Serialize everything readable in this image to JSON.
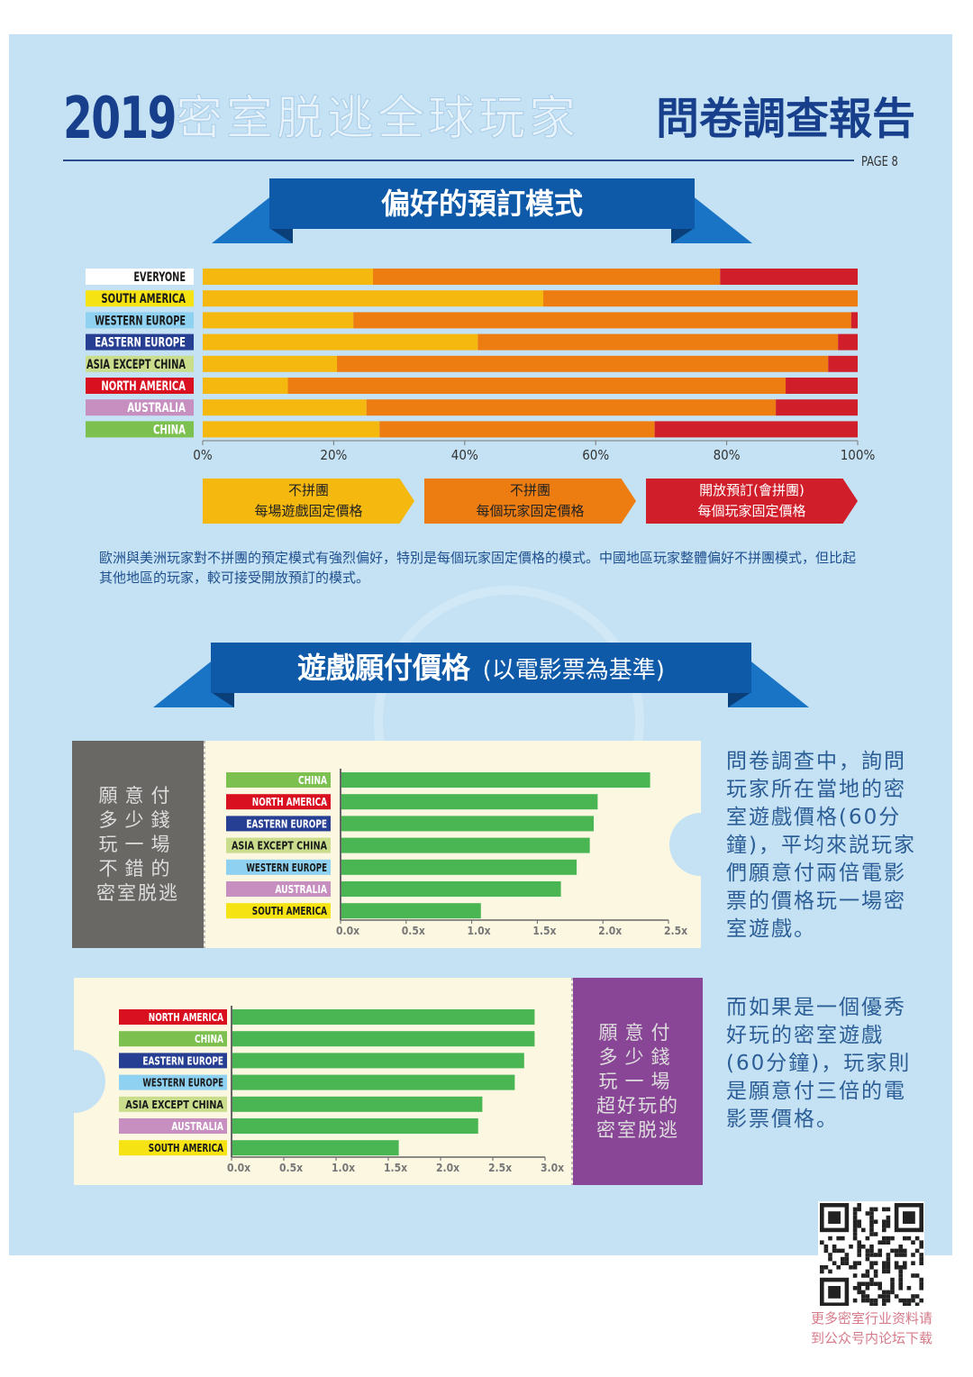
{
  "header": {
    "year": "2019",
    "title_mid": "密室脱逃全球玩家",
    "title_end": "問卷調查報告",
    "page": "PAGE 8"
  },
  "section1": {
    "title": "偏好的預訂模式"
  },
  "legend": [
    {
      "line1": "不拼團",
      "line2": "每場遊戲固定價格",
      "color": "#f5b80f"
    },
    {
      "line1": "不拼團",
      "line2": "每個玩家固定價格",
      "color": "#ee7d11"
    },
    {
      "line1": "開放預訂(會拼團)",
      "line2": "每個玩家固定價格",
      "color": "#d11e2b"
    }
  ],
  "note1": "歐洲與美洲玩家對不拼團的預定模式有強烈偏好，特別是每個玩家固定價格的模式。中國地區玩家整體偏好不拼團模式，但比起其他地區的玩家，較可接受開放預訂的模式。",
  "section2": {
    "title": "遊戲願付價格",
    "subtitle": "(以電影票為基準)"
  },
  "ticket1": {
    "side_lines": [
      "願意付",
      "多少錢",
      "玩一場",
      "不錯的",
      "密室脱逃"
    ]
  },
  "ticket2": {
    "side_lines": [
      "願意付",
      "多少錢",
      "玩一場",
      "超好玩的",
      "密室脱逃"
    ]
  },
  "text1": "問卷調查中，詢問玩家所在當地的密室遊戲價格(60分鐘)，平均來説玩家們願意付兩倍電影票的價格玩一場密室遊戲。",
  "text2": "而如果是一個優秀好玩的密室遊戲(60分鐘)，玩家則是願意付三倍的電影票價格。",
  "qr_text": [
    "更多密室行业资料请",
    "到公众号内论坛下载"
  ],
  "region_colors": {
    "EVERYONE": "#ffffff",
    "SOUTH AMERICA": "#f6e313",
    "WESTERN EUROPE": "#8fd1f0",
    "EASTERN EUROPE": "#263f93",
    "ASIA EXCEPT CHINA": "#c9dd8c",
    "NORTH AMERICA": "#d8101f",
    "AUSTRALIA": "#c68fc0",
    "CHINA": "#7cc04f"
  },
  "chart_data": [
    {
      "type": "bar",
      "orientation": "horizontal",
      "stacked": true,
      "categories": [
        "EVERYONE",
        "SOUTH AMERICA",
        "WESTERN EUROPE",
        "EASTERN EUROPE",
        "ASIA EXCEPT CHINA",
        "NORTH AMERICA",
        "AUSTRALIA",
        "CHINA"
      ],
      "series": [
        {
          "name": "不拼團 每場遊戲固定價格",
          "color": "#f5b80f",
          "values": [
            26,
            52,
            23,
            42,
            20.5,
            13,
            25,
            27
          ]
        },
        {
          "name": "不拼團 每個玩家固定價格",
          "color": "#ee7d11",
          "values": [
            53,
            48,
            76,
            55,
            75,
            76,
            62.5,
            42
          ]
        },
        {
          "name": "開放預訂(會拼團) 每個玩家固定價格",
          "color": "#d11e2b",
          "values": [
            21,
            0,
            1,
            3,
            4.5,
            11,
            12.5,
            31
          ]
        }
      ],
      "xlim": [
        0,
        100
      ],
      "xticks": [
        "0%",
        "20%",
        "40%",
        "60%",
        "80%",
        "100%"
      ],
      "grid": false
    },
    {
      "type": "bar",
      "orientation": "horizontal",
      "categories": [
        "CHINA",
        "NORTH AMERICA",
        "EASTERN EUROPE",
        "ASIA EXCEPT CHINA",
        "WESTERN EUROPE",
        "AUSTRALIA",
        "SOUTH AMERICA"
      ],
      "values": [
        2.36,
        1.96,
        1.93,
        1.9,
        1.8,
        1.68,
        1.07
      ],
      "color": "#49b653",
      "xlim": [
        0,
        2.5
      ],
      "xticks": [
        "0.0x",
        "0.5x",
        "1.0x",
        "1.5x",
        "2.0x",
        "2.5x"
      ]
    },
    {
      "type": "bar",
      "orientation": "horizontal",
      "categories": [
        "NORTH AMERICA",
        "CHINA",
        "EASTERN EUROPE",
        "WESTERN EUROPE",
        "ASIA EXCEPT CHINA",
        "AUSTRALIA",
        "SOUTH AMERICA"
      ],
      "values": [
        2.9,
        2.9,
        2.8,
        2.71,
        2.4,
        2.36,
        1.6
      ],
      "color": "#49b653",
      "xlim": [
        0,
        3.0
      ],
      "xticks": [
        "0.0x",
        "0.5x",
        "1.0x",
        "1.5x",
        "2.0x",
        "2.5x",
        "3.0x"
      ]
    }
  ]
}
